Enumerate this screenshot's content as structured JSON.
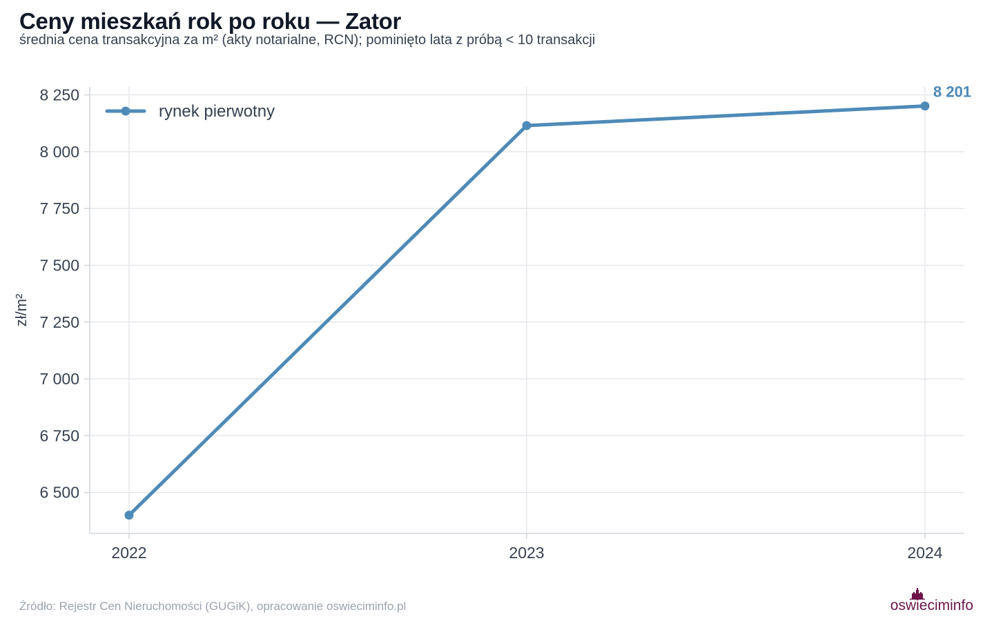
{
  "title": "Ceny mieszkań rok po roku — Zator",
  "subtitle": "średnia cena transakcyjna za m² (akty notarialne, RCN); pominięto lata z próbą < 10 transakcji",
  "source": "Źródło: Rejestr Cen Nieruchomości (GUGiK), opracowanie oswieciminfo.pl",
  "logo": {
    "part1": "oswiecim",
    "part2": "info"
  },
  "colors": {
    "series": "#4e8ab8",
    "grid": "#e5e7eb",
    "axis": "#d1d5db",
    "logo": "#6b1548"
  },
  "chart_data": {
    "type": "line",
    "title": "Ceny mieszkań rok po roku — Zator",
    "subtitle": "średnia cena transakcyjna za m² (akty notarialne, RCN); pominięto lata z próbą < 10 transakcji",
    "xlabel": "",
    "ylabel": "zł/m²",
    "categories": [
      "2022",
      "2023",
      "2024"
    ],
    "series": [
      {
        "name": "rynek pierwotny",
        "values": [
          6400,
          8115,
          8201
        ]
      }
    ],
    "yticks": [
      6500,
      6750,
      7000,
      7250,
      7500,
      7750,
      8000,
      8250
    ],
    "ytick_labels": [
      "6 500",
      "6 750",
      "7 000",
      "7 250",
      "7 500",
      "7 750",
      "8 000",
      "8 250"
    ],
    "ylim": [
      6320,
      8285
    ],
    "end_label": "8 201",
    "grid": true,
    "legend_position": "top-left"
  }
}
